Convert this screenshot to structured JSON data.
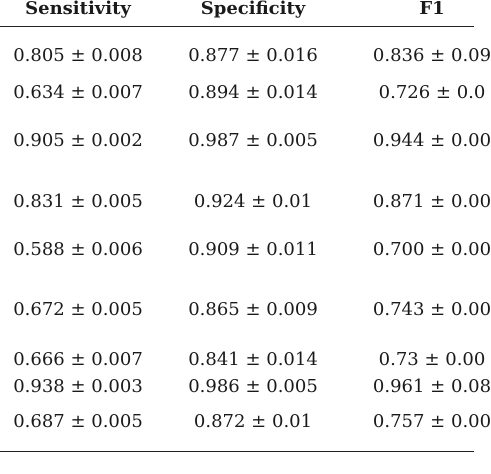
{
  "table": {
    "headers": [
      "Sensitivity",
      "Specificity",
      "F1"
    ],
    "rows": [
      [
        "0.805 ± 0.008",
        "0.877 ± 0.016",
        "0.836 ± 0.09"
      ],
      [
        "0.634 ± 0.007",
        "0.894 ± 0.014",
        "0.726 ± 0.0"
      ],
      [
        "0.905 ± 0.002",
        "0.987 ± 0.005",
        "0.944 ± 0.00"
      ],
      [
        "0.831 ± 0.005",
        "0.924 ± 0.01",
        "0.871 ± 0.00"
      ],
      [
        "0.588 ± 0.006",
        "0.909 ± 0.011",
        "0.700 ± 0.00"
      ],
      [
        "0.672 ± 0.005",
        "0.865 ± 0.009",
        "0.743 ± 0.00"
      ],
      [
        "0.666 ± 0.007",
        "0.841 ± 0.014",
        "0.73 ± 0.00"
      ],
      [
        "0.938 ± 0.003",
        "0.986 ± 0.005",
        "0.961 ± 0.08"
      ],
      [
        "0.687 ± 0.005",
        "0.872 ± 0.01",
        "0.757 ± 0.00"
      ]
    ]
  }
}
